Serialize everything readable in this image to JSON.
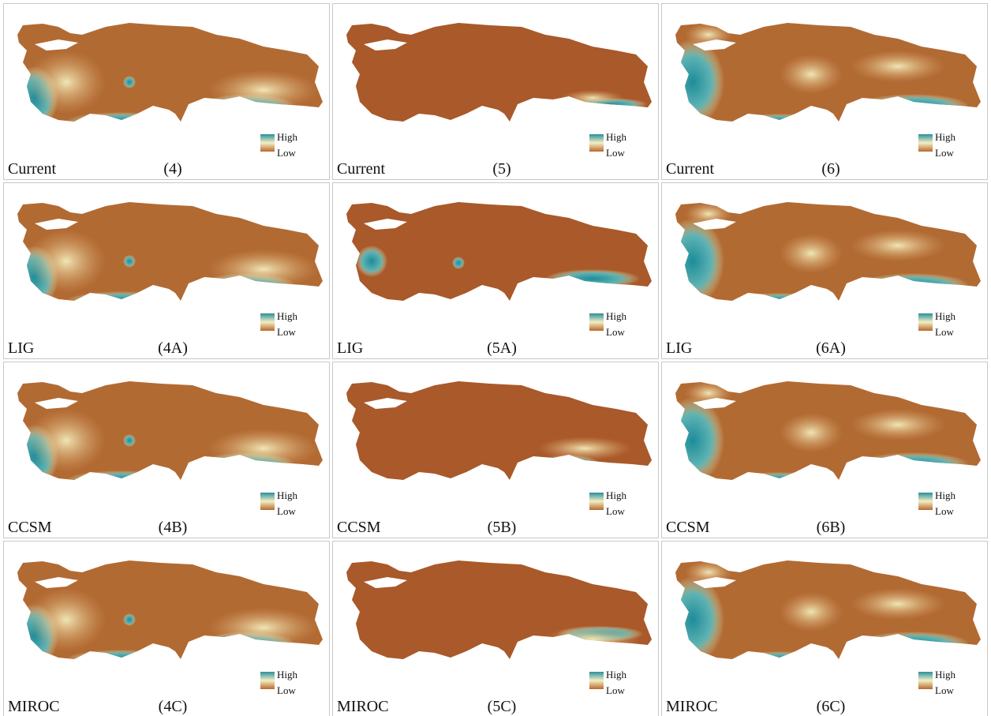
{
  "panels": [
    {
      "scenario": "Current",
      "label": "(4)",
      "legend": {
        "high": "High",
        "low": "Low"
      }
    },
    {
      "scenario": "Current",
      "label": "(5)",
      "legend": {
        "high": "High",
        "low": "Low"
      }
    },
    {
      "scenario": "Current",
      "label": "(6)",
      "legend": {
        "high": "High",
        "low": "Low"
      }
    },
    {
      "scenario": "LIG",
      "label": "(4A)",
      "legend": {
        "high": "High",
        "low": "Low"
      }
    },
    {
      "scenario": "LIG",
      "label": "(5A)",
      "legend": {
        "high": "High",
        "low": "Low"
      }
    },
    {
      "scenario": "LIG",
      "label": "(6A)",
      "legend": {
        "high": "High",
        "low": "Low"
      }
    },
    {
      "scenario": "CCSM",
      "label": "(4B)",
      "legend": {
        "high": "High",
        "low": "Low"
      }
    },
    {
      "scenario": "CCSM",
      "label": "(5B)",
      "legend": {
        "high": "High",
        "low": "Low"
      }
    },
    {
      "scenario": "CCSM",
      "label": "(6B)",
      "legend": {
        "high": "High",
        "low": "Low"
      }
    },
    {
      "scenario": "MIROC",
      "label": "(4C)",
      "legend": {
        "high": "High",
        "low": "Low"
      }
    },
    {
      "scenario": "MIROC",
      "label": "(5C)",
      "legend": {
        "high": "High",
        "low": "Low"
      }
    },
    {
      "scenario": "MIROC",
      "label": "(6C)",
      "legend": {
        "high": "High",
        "low": "Low"
      }
    }
  ]
}
